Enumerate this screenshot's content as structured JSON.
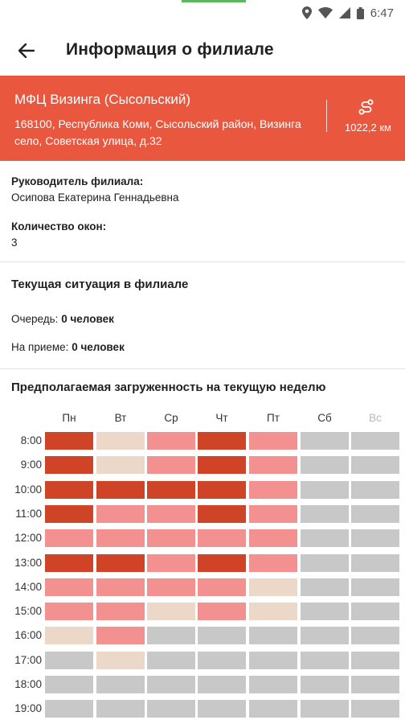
{
  "status_bar": {
    "time": "6:47",
    "icons": [
      "location-icon",
      "wifi-icon",
      "signal-icon",
      "battery-icon"
    ]
  },
  "app_bar": {
    "title": "Информация о филиале",
    "back_icon": "arrow-back-icon"
  },
  "branch": {
    "name": "МФЦ Визинга (Сысольский)",
    "address": "168100, Республика Коми, Сысольский район, Визинга село, Советская улица, д.32",
    "distance": "1022,2 км",
    "route_icon": "route-icon",
    "color": "#e9573f"
  },
  "info": {
    "head_label": "Руководитель филиала:",
    "head_value": "Осипова Екатерина Геннадьевна",
    "windows_label": "Количество окон:",
    "windows_value": "3"
  },
  "situation": {
    "title": "Текущая ситуация в филиале",
    "queue_label": "Очередь:",
    "queue_value": "0 человек",
    "reception_label": "На приеме:",
    "reception_value": "0 человек"
  },
  "load": {
    "title": "Предполагаемая загруженность на текущую неделю",
    "days": [
      "Пн",
      "Вт",
      "Ср",
      "Чт",
      "Пт",
      "Сб",
      "Вс"
    ],
    "hours": [
      "8:00",
      "9:00",
      "10:00",
      "11:00",
      "12:00",
      "13:00",
      "14:00",
      "15:00",
      "16:00",
      "17:00",
      "18:00",
      "19:00"
    ],
    "levels": {
      "high": "#cf4426",
      "medium": "#f29190",
      "low": "#ecd8c8",
      "closed": "#c8c8c8"
    },
    "grid": [
      [
        "high",
        "low",
        "medium",
        "high",
        "medium",
        "closed",
        "closed"
      ],
      [
        "high",
        "low",
        "medium",
        "high",
        "medium",
        "closed",
        "closed"
      ],
      [
        "high",
        "high",
        "high",
        "high",
        "medium",
        "closed",
        "closed"
      ],
      [
        "high",
        "medium",
        "medium",
        "high",
        "medium",
        "closed",
        "closed"
      ],
      [
        "medium",
        "medium",
        "medium",
        "medium",
        "medium",
        "closed",
        "closed"
      ],
      [
        "high",
        "high",
        "medium",
        "high",
        "medium",
        "closed",
        "closed"
      ],
      [
        "medium",
        "medium",
        "medium",
        "medium",
        "low",
        "closed",
        "closed"
      ],
      [
        "medium",
        "medium",
        "low",
        "medium",
        "low",
        "closed",
        "closed"
      ],
      [
        "low",
        "medium",
        "closed",
        "closed",
        "closed",
        "closed",
        "closed"
      ],
      [
        "closed",
        "low",
        "closed",
        "closed",
        "closed",
        "closed",
        "closed"
      ],
      [
        "closed",
        "closed",
        "closed",
        "closed",
        "closed",
        "closed",
        "closed"
      ],
      [
        "closed",
        "closed",
        "closed",
        "closed",
        "closed",
        "closed",
        "closed"
      ]
    ]
  }
}
